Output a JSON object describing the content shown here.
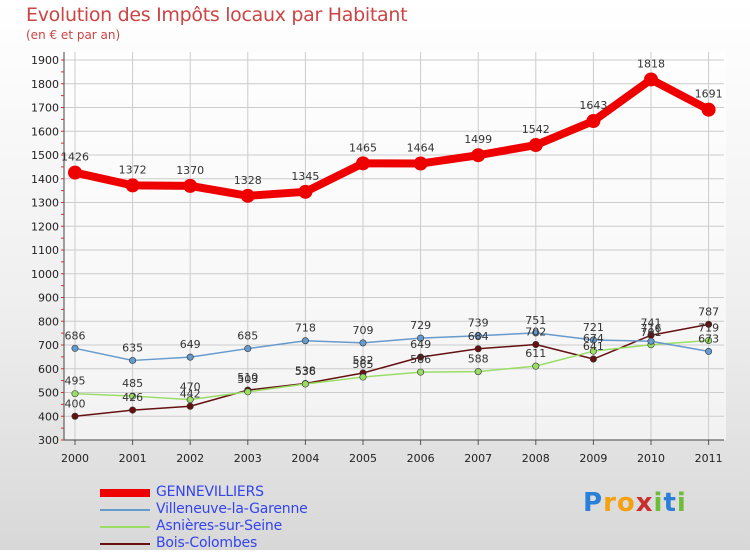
{
  "chart_data": {
    "type": "line",
    "title": "Evolution des Impôts locaux par Habitant",
    "subtitle": "(en € et par an)",
    "xlabel": "",
    "ylabel": "",
    "ylim": [
      300,
      1900
    ],
    "y_ticks": [
      300,
      400,
      500,
      600,
      700,
      800,
      900,
      1000,
      1100,
      1200,
      1300,
      1400,
      1500,
      1600,
      1700,
      1800,
      1900
    ],
    "categories": [
      "2000",
      "2001",
      "2002",
      "2003",
      "2004",
      "2005",
      "2006",
      "2007",
      "2008",
      "2009",
      "2010",
      "2011"
    ],
    "series": [
      {
        "name": "GENNEVILLIERS",
        "color": "#ee0000",
        "values": [
          1426,
          1372,
          1370,
          1328,
          1345,
          1465,
          1464,
          1499,
          1542,
          1643,
          1818,
          1691
        ]
      },
      {
        "name": "Villeneuve-la-Garenne",
        "color": "#6699cc",
        "values": [
          686,
          635,
          649,
          685,
          718,
          709,
          729,
          739,
          751,
          721,
          716,
          673
        ]
      },
      {
        "name": "Asnières-sur-Seine",
        "color": "#99dd66",
        "values": [
          495,
          485,
          470,
          503,
          536,
          565,
          586,
          588,
          611,
          674,
          701,
          719
        ]
      },
      {
        "name": "Bois-Colombes",
        "color": "#661111",
        "values": [
          400,
          426,
          442,
          510,
          538,
          582,
          649,
          684,
          702,
          641,
          741,
          787
        ]
      }
    ],
    "legend_position": "bottom-left"
  },
  "logo": {
    "text": "Proxiti",
    "letters": [
      "P",
      "r",
      "o",
      "x",
      "i",
      "t",
      "i"
    ]
  }
}
